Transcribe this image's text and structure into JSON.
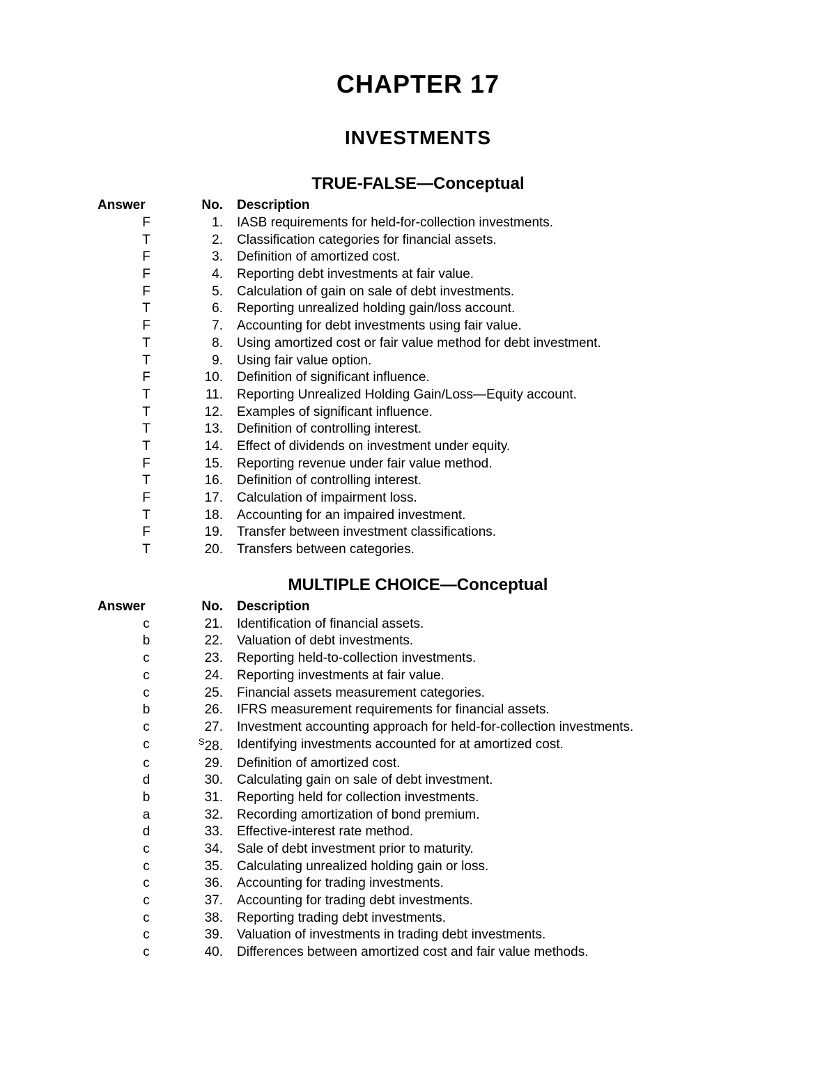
{
  "chapter_title": "CHAPTER 17",
  "chapter_subject": "INVESTMENTS",
  "section1": {
    "title": "TRUE-FALSE—Conceptual",
    "header_answer": "Answer",
    "header_no": "No.",
    "header_desc": "Description",
    "rows": [
      {
        "answer": "F",
        "no": "1.",
        "desc": "IASB requirements for held-for-collection investments."
      },
      {
        "answer": "T",
        "no": "2.",
        "desc": "Classification categories for financial assets."
      },
      {
        "answer": "F",
        "no": "3.",
        "desc": "Definition of amortized cost."
      },
      {
        "answer": "F",
        "no": "4.",
        "desc": "Reporting debt investments at fair value."
      },
      {
        "answer": "F",
        "no": "5.",
        "desc": "Calculation of gain on sale of debt investments."
      },
      {
        "answer": "T",
        "no": "6.",
        "desc": "Reporting unrealized holding gain/loss account."
      },
      {
        "answer": "F",
        "no": "7.",
        "desc": "Accounting for debt investments using fair value."
      },
      {
        "answer": "T",
        "no": "8.",
        "desc": "Using amortized cost or fair value method for debt investment."
      },
      {
        "answer": "T",
        "no": "9.",
        "desc": "Using fair value option."
      },
      {
        "answer": "F",
        "no": "10.",
        "desc": "Definition of significant influence."
      },
      {
        "answer": "T",
        "no": "11.",
        "desc": "Reporting Unrealized Holding Gain/Loss—Equity account."
      },
      {
        "answer": "T",
        "no": "12.",
        "desc": "Examples of significant influence."
      },
      {
        "answer": "T",
        "no": "13.",
        "desc": "Definition of controlling interest."
      },
      {
        "answer": "T",
        "no": "14.",
        "desc": "Effect of dividends on investment under equity."
      },
      {
        "answer": "F",
        "no": "15.",
        "desc": "Reporting revenue under fair value method."
      },
      {
        "answer": "T",
        "no": "16.",
        "desc": "Definition of controlling interest."
      },
      {
        "answer": "F",
        "no": "17.",
        "desc": "Calculation of impairment loss."
      },
      {
        "answer": "T",
        "no": "18.",
        "desc": "Accounting for an impaired investment."
      },
      {
        "answer": "F",
        "no": "19.",
        "desc": "Transfer between investment classifications."
      },
      {
        "answer": "T",
        "no": "20.",
        "desc": "Transfers between categories."
      }
    ]
  },
  "section2": {
    "title": "MULTIPLE CHOICE—Conceptual",
    "header_answer": "Answer",
    "header_no": "No.",
    "header_desc": "Description",
    "rows": [
      {
        "answer": "c",
        "no": "21.",
        "desc": "Identification of financial assets."
      },
      {
        "answer": "b",
        "no": "22.",
        "desc": "Valuation of debt investments."
      },
      {
        "answer": "c",
        "no": "23.",
        "desc": "Reporting held-to-collection investments."
      },
      {
        "answer": "c",
        "no": "24.",
        "desc": "Reporting investments at fair value."
      },
      {
        "answer": "c",
        "no": "25.",
        "desc": "Financial assets measurement categories."
      },
      {
        "answer": "b",
        "no": "26.",
        "desc": "IFRS measurement requirements for financial assets."
      },
      {
        "answer": "c",
        "no": "27.",
        "desc": "Investment accounting approach for held-for-collection investments."
      },
      {
        "answer": "c",
        "no": "28.",
        "prefix": "S",
        "desc": "Identifying investments accounted for at amortized cost."
      },
      {
        "answer": "c",
        "no": "29.",
        "desc": "Definition of amortized cost."
      },
      {
        "answer": "d",
        "no": "30.",
        "desc": "Calculating gain on sale of debt investment."
      },
      {
        "answer": "b",
        "no": "31.",
        "desc": "Reporting held for collection investments."
      },
      {
        "answer": "a",
        "no": "32.",
        "desc": "Recording amortization of bond premium."
      },
      {
        "answer": "d",
        "no": "33.",
        "desc": "Effective-interest rate method."
      },
      {
        "answer": "c",
        "no": "34.",
        "desc": "Sale of debt investment prior to maturity."
      },
      {
        "answer": "c",
        "no": "35.",
        "desc": "Calculating unrealized holding gain or loss."
      },
      {
        "answer": "c",
        "no": "36.",
        "desc": "Accounting for trading investments."
      },
      {
        "answer": "c",
        "no": "37.",
        "desc": "Accounting for trading debt investments."
      },
      {
        "answer": "c",
        "no": "38.",
        "desc": "Reporting trading debt investments."
      },
      {
        "answer": "c",
        "no": "39.",
        "desc": "Valuation of investments in trading debt investments."
      },
      {
        "answer": "c",
        "no": "40.",
        "desc": "Differences between amortized cost and fair value methods."
      }
    ]
  }
}
